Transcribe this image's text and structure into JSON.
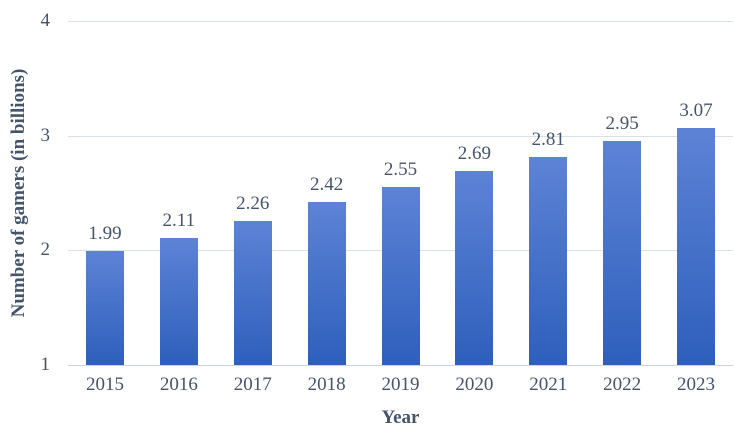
{
  "chart_data": {
    "type": "bar",
    "categories": [
      "2015",
      "2016",
      "2017",
      "2018",
      "2019",
      "2020",
      "2021",
      "2022",
      "2023"
    ],
    "values": [
      1.99,
      2.11,
      2.26,
      2.42,
      2.55,
      2.69,
      2.81,
      2.95,
      3.07
    ],
    "data_labels": [
      "1.99",
      "2.11",
      "2.26",
      "2.42",
      "2.55",
      "2.69",
      "2.81",
      "2.95",
      "3.07"
    ],
    "title": "",
    "xlabel": "Year",
    "ylabel": "Number of gamers (in billions)",
    "ylim": [
      1,
      4
    ],
    "yticks": [
      1,
      2,
      3,
      4
    ],
    "grid": true,
    "legend": "none",
    "colors": {
      "bar_gradient_top": "#5d83d6",
      "bar_gradient_bottom": "#2e5fbc",
      "text": "#44546a",
      "gridline": "#dae0e7",
      "axis_line": "#ccd3dc",
      "background": "#ffffff"
    }
  }
}
